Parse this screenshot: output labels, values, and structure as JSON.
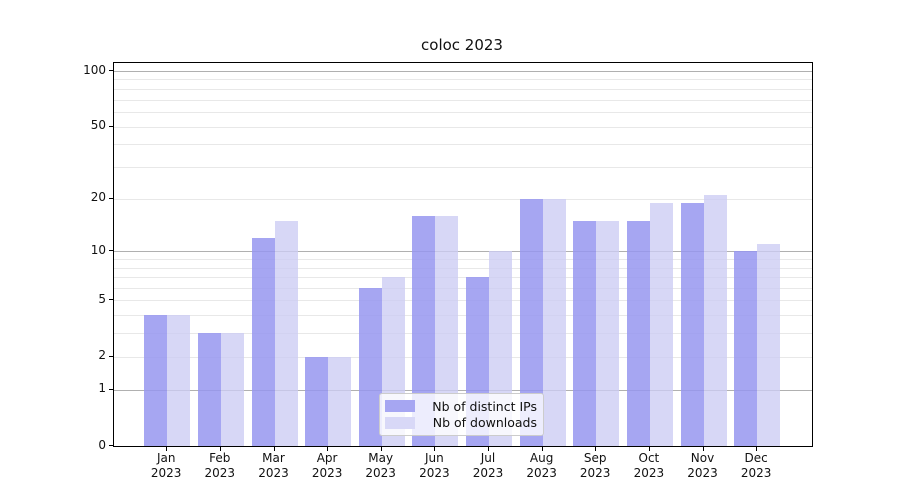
{
  "chart_data": {
    "type": "bar",
    "title": "coloc 2023",
    "x": {
      "months": [
        "Jan",
        "Feb",
        "Mar",
        "Apr",
        "May",
        "Jun",
        "Jul",
        "Aug",
        "Sep",
        "Oct",
        "Nov",
        "Dec"
      ],
      "year": "2023"
    },
    "series": [
      {
        "name": "Nb of distinct IPs",
        "key": "distinct-ips",
        "color": "rgba(150,150,240,0.85)",
        "legend_color": "#a6a6f2",
        "values": [
          4,
          3,
          12,
          2,
          6,
          16,
          7,
          20,
          15,
          15,
          19,
          10
        ]
      },
      {
        "name": "Nb of downloads",
        "key": "downloads",
        "color": "rgba(204,204,244,0.78)",
        "legend_color": "#d8d8f7",
        "values": [
          4,
          3,
          15,
          2,
          7,
          16,
          10,
          20,
          15,
          19,
          21,
          11
        ]
      }
    ],
    "y_axis": {
      "scale": "log1p",
      "tick_labels": [
        0,
        1,
        2,
        5,
        10,
        20,
        50,
        100
      ],
      "major_gridlines": [
        1,
        10,
        100
      ],
      "minor_gridlines": [
        2,
        3,
        4,
        5,
        6,
        7,
        8,
        9,
        20,
        30,
        40,
        50,
        60,
        70,
        80,
        90
      ],
      "ylim": [
        0,
        110
      ],
      "grid": true
    },
    "legend": {
      "position": "lower center",
      "entries": [
        "Nb of distinct IPs",
        "Nb of downloads"
      ]
    }
  },
  "colors": {
    "grid_major": "#b0b0b0",
    "grid_minor": "#e8e8e8",
    "spine": "#000000",
    "text": "#111111",
    "legend_border": "#cccccc"
  }
}
